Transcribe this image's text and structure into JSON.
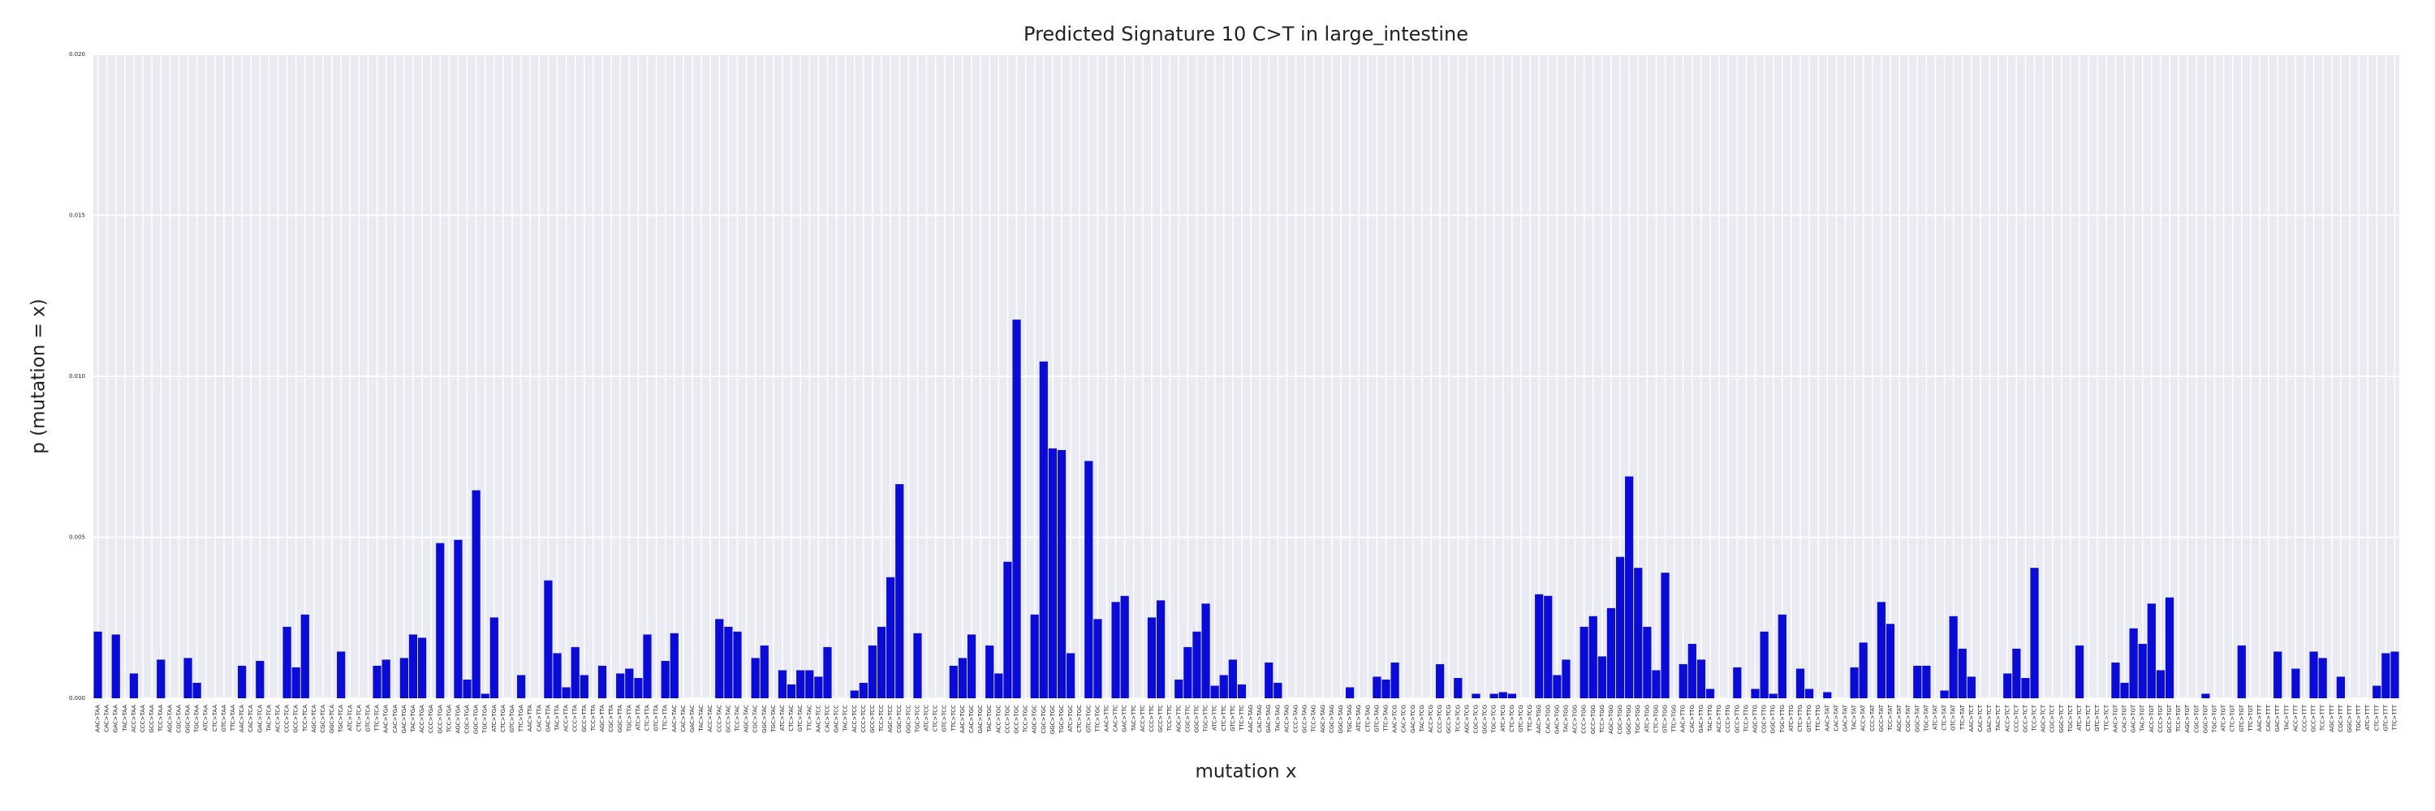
{
  "chart_data": {
    "type": "bar",
    "title": "Predicted Signature 10 C>T in large_intestine",
    "x_label": "mutation x",
    "y_label": "p (mutation = x)",
    "color": "#0b0bd6",
    "grid": true,
    "ylim": [
      0,
      0.02
    ],
    "yticks": [
      {
        "value": 0,
        "label": "0.000"
      },
      {
        "value": 0.005,
        "label": "0.005"
      },
      {
        "value": 0.01,
        "label": "0.010"
      },
      {
        "value": 0.015,
        "label": "0.015"
      },
      {
        "value": 0.02,
        "label": "0.020"
      }
    ],
    "categories": [
      "AAC>TAA",
      "CAC>TAA",
      "GAC>TAA",
      "TAC>TAA",
      "ACC>TAA",
      "CCC>TAA",
      "GCC>TAA",
      "TCC>TAA",
      "AGC>TAA",
      "CGC>TAA",
      "GGC>TAA",
      "TGC>TAA",
      "ATC>TAA",
      "CTC>TAA",
      "GTC>TAA",
      "TTC>TAA",
      "AAC>TCA",
      "CAC>TCA",
      "GAC>TCA",
      "TAC>TCA",
      "ACC>TCA",
      "CCC>TCA",
      "GCC>TCA",
      "TCC>TCA",
      "AGC>TCA",
      "CGC>TCA",
      "GGC>TCA",
      "TGC>TCA",
      "ATC>TCA",
      "CTC>TCA",
      "GTC>TCA",
      "TTC>TCA",
      "AAC>TGA",
      "CAC>TGA",
      "GAC>TGA",
      "TAC>TGA",
      "ACC>TGA",
      "CCC>TGA",
      "GCC>TGA",
      "TCC>TGA",
      "AGC>TGA",
      "CGC>TGA",
      "GGC>TGA",
      "TGC>TGA",
      "ATC>TGA",
      "CTC>TGA",
      "GTC>TGA",
      "TTC>TGA",
      "AAC>TTA",
      "CAC>TTA",
      "GAC>TTA",
      "TAC>TTA",
      "ACC>TTA",
      "CCC>TTA",
      "GCC>TTA",
      "TCC>TTA",
      "AGC>TTA",
      "CGC>TTA",
      "GGC>TTA",
      "TGC>TTA",
      "ATC>TTA",
      "CTC>TTA",
      "GTC>TTA",
      "TTC>TTA",
      "AAC>TAC",
      "CAC>TAC",
      "GAC>TAC",
      "TAC>TAC",
      "ACC>TAC",
      "CCC>TAC",
      "GCC>TAC",
      "TCC>TAC",
      "AGC>TAC",
      "CGC>TAC",
      "GGC>TAC",
      "TGC>TAC",
      "ATC>TAC",
      "CTC>TAC",
      "GTC>TAC",
      "TTC>TAC",
      "AAC>TCC",
      "CAC>TCC",
      "GAC>TCC",
      "TAC>TCC",
      "ACC>TCC",
      "CCC>TCC",
      "GCC>TCC",
      "TCC>TCC",
      "AGC>TCC",
      "CGC>TCC",
      "GGC>TCC",
      "TGC>TCC",
      "ATC>TCC",
      "CTC>TCC",
      "GTC>TCC",
      "TTC>TCC",
      "AAC>TGC",
      "CAC>TGC",
      "GAC>TGC",
      "TAC>TGC",
      "ACC>TGC",
      "CCC>TGC",
      "GCC>TGC",
      "TCC>TGC",
      "AGC>TGC",
      "CGC>TGC",
      "GGC>TGC",
      "TGC>TGC",
      "ATC>TGC",
      "CTC>TGC",
      "GTC>TGC",
      "TTC>TGC",
      "AAC>TTC",
      "CAC>TTC",
      "GAC>TTC",
      "TAC>TTC",
      "ACC>TTC",
      "CCC>TTC",
      "GCC>TTC",
      "TCC>TTC",
      "AGC>TTC",
      "CGC>TTC",
      "GGC>TTC",
      "TGC>TTC",
      "ATC>TTC",
      "CTC>TTC",
      "GTC>TTC",
      "TTC>TTC",
      "AAC>TAG",
      "CAC>TAG",
      "GAC>TAG",
      "TAC>TAG",
      "ACC>TAG",
      "CCC>TAG",
      "GCC>TAG",
      "TCC>TAG",
      "AGC>TAG",
      "CGC>TAG",
      "GGC>TAG",
      "TGC>TAG",
      "ATC>TAG",
      "CTC>TAG",
      "GTC>TAG",
      "TTC>TAG",
      "AAC>TCG",
      "CAC>TCG",
      "GAC>TCG",
      "TAC>TCG",
      "ACC>TCG",
      "CCC>TCG",
      "GCC>TCG",
      "TCC>TCG",
      "AGC>TCG",
      "CGC>TCG",
      "GGC>TCG",
      "TGC>TCG",
      "ATC>TCG",
      "CTC>TCG",
      "GTC>TCG",
      "TTC>TCG",
      "AAC>TGG",
      "CAC>TGG",
      "GAC>TGG",
      "TAC>TGG",
      "ACC>TGG",
      "CCC>TGG",
      "GCC>TGG",
      "TCC>TGG",
      "AGC>TGG",
      "CGC>TGG",
      "GGC>TGG",
      "TGC>TGG",
      "ATC>TGG",
      "CTC>TGG",
      "GTC>TGG",
      "TTC>TGG",
      "AAC>TTG",
      "CAC>TTG",
      "GAC>TTG",
      "TAC>TTG",
      "ACC>TTG",
      "CCC>TTG",
      "GCC>TTG",
      "TCC>TTG",
      "AGC>TTG",
      "CGC>TTG",
      "GGC>TTG",
      "TGC>TTG",
      "ATC>TTG",
      "CTC>TTG",
      "GTC>TTG",
      "TTC>TTG",
      "AAC>TAT",
      "CAC>TAT",
      "GAC>TAT",
      "TAC>TAT",
      "ACC>TAT",
      "CCC>TAT",
      "GCC>TAT",
      "TCC>TAT",
      "AGC>TAT",
      "CGC>TAT",
      "GGC>TAT",
      "TGC>TAT",
      "ATC>TAT",
      "CTC>TAT",
      "GTC>TAT",
      "TTC>TAT",
      "AAC>TCT",
      "CAC>TCT",
      "GAC>TCT",
      "TAC>TCT",
      "ACC>TCT",
      "CCC>TCT",
      "GCC>TCT",
      "TCC>TCT",
      "AGC>TCT",
      "CGC>TCT",
      "GGC>TCT",
      "TGC>TCT",
      "ATC>TCT",
      "CTC>TCT",
      "GTC>TCT",
      "TTC>TCT",
      "AAC>TGT",
      "CAC>TGT",
      "GAC>TGT",
      "TAC>TGT",
      "ACC>TGT",
      "CCC>TGT",
      "GCC>TGT",
      "TCC>TGT",
      "AGC>TGT",
      "CGC>TGT",
      "GGC>TGT",
      "TGC>TGT",
      "ATC>TGT",
      "CTC>TGT",
      "GTC>TGT",
      "TTC>TGT",
      "AAC>TTT",
      "CAC>TTT",
      "GAC>TTT",
      "TAC>TTT",
      "ACC>TTT",
      "CCC>TTT",
      "GCC>TTT",
      "TCC>TTT",
      "AGC>TTT",
      "CGC>TTT",
      "GGC>TTT",
      "TGC>TTT",
      "ATC>TTT",
      "CTC>TTT",
      "GTC>TTT",
      "TTC>TTT"
    ],
    "values": [
      0.00207,
      0,
      0.00198,
      0,
      0.00077,
      0,
      0,
      0.0012,
      0,
      0,
      0.00125,
      0.00048,
      0,
      0,
      0,
      0,
      0.00101,
      0,
      0.00116,
      0,
      0,
      0.00222,
      0.00096,
      0.0026,
      0,
      0,
      0,
      0.00145,
      0,
      0,
      0,
      0.00101,
      0.0012,
      0,
      0.00125,
      0.00198,
      0.00188,
      0,
      0.00482,
      0,
      0.00492,
      0.00058,
      0.00646,
      0.00014,
      0.00251,
      0,
      0,
      0.00072,
      0,
      0,
      0.00366,
      0.0014,
      0.00034,
      0.00159,
      0.00072,
      0,
      0.00101,
      0,
      0.00077,
      0.00092,
      0.00063,
      0.00198,
      0,
      0.00116,
      0.00202,
      0,
      0,
      0,
      0,
      0.00246,
      0.00222,
      0.00207,
      0,
      0.00125,
      0.00164,
      0,
      0.00087,
      0.00043,
      0.00087,
      0.00087,
      0.00067,
      0.00159,
      0,
      0,
      0.00024,
      0.00048,
      0.00164,
      0.00222,
      0.00376,
      0.00665,
      0,
      0.00202,
      0,
      0,
      0,
      0.00101,
      0.00125,
      0.00198,
      0,
      0.00164,
      0.00077,
      0.00424,
      0.01176,
      0,
      0.0026,
      0.01046,
      0.00776,
      0.00771,
      0.0014,
      0,
      0.00737,
      0.00246,
      0,
      0.00299,
      0.00318,
      0,
      0,
      0.00251,
      0.00304,
      0,
      0.00058,
      0.00159,
      0.00207,
      0.00294,
      0.00039,
      0.00072,
      0.0012,
      0.00043,
      0,
      0,
      0.00111,
      0.00048,
      0,
      0,
      0,
      0,
      0,
      0,
      0,
      0.00034,
      0,
      0,
      0.00067,
      0.00058,
      0.00111,
      0,
      0,
      0,
      0,
      0.00106,
      0,
      0.00063,
      0,
      0.00014,
      0,
      0.00014,
      0.00019,
      0.00014,
      0,
      0,
      0.00323,
      0.00318,
      0.00072,
      0.0012,
      0,
      0.00222,
      0.00255,
      0.0013,
      0.0028,
      0.00439,
      0.00689,
      0.00405,
      0.00222,
      0.00087,
      0.0039,
      0,
      0.00106,
      0.00169,
      0.0012,
      0.00029,
      0,
      0,
      0.00096,
      0,
      0.00029,
      0.00207,
      0.00014,
      0.0026,
      0,
      0.00092,
      0.00029,
      0,
      0.00019,
      0,
      0,
      0.00096,
      0.00173,
      0,
      0.00299,
      0.00231,
      0,
      0,
      0.00101,
      0.00101,
      0,
      0.00024,
      0.00255,
      0.00154,
      0.00067,
      0,
      0,
      0,
      0.00077,
      0.00154,
      0.00063,
      0.00405,
      0,
      0,
      0,
      0,
      0.00164,
      0,
      0,
      0,
      0.00111,
      0.00048,
      0.00217,
      0.00169,
      0.00294,
      0.00087,
      0.00313,
      0,
      0,
      0,
      0.00014,
      0,
      0,
      0,
      0.00164,
      0,
      0,
      0,
      0.00145,
      0,
      0.00092,
      0,
      0.00145,
      0.00125,
      0,
      0.00067,
      0,
      0,
      0,
      0.00039,
      0.0014,
      0.00145
    ]
  }
}
